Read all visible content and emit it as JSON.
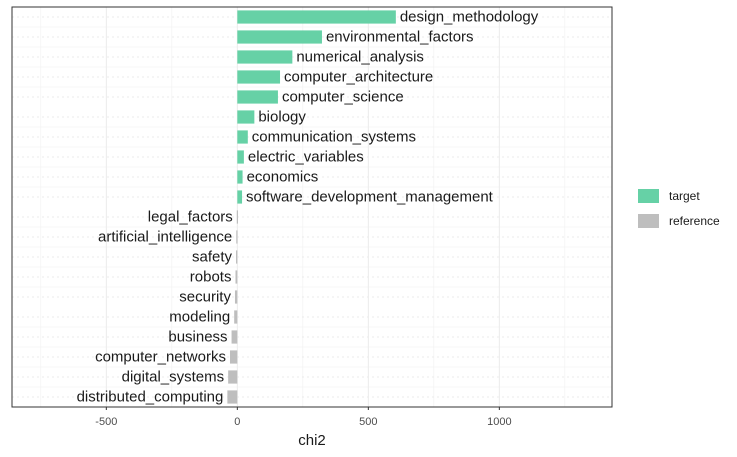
{
  "chart_data": {
    "type": "bar",
    "orientation": "horizontal",
    "title": "",
    "xlabel": "chi2",
    "ylabel": "",
    "xlim": [
      -860,
      1430
    ],
    "xticks": [
      -500,
      0,
      500,
      1000
    ],
    "xtick_labels": [
      "-500",
      "0",
      "500",
      "1000"
    ],
    "grid": true,
    "legend_position": "right",
    "legend": [
      {
        "name": "target",
        "color": "#66d1a6"
      },
      {
        "name": "reference",
        "color": "#bebebe"
      }
    ],
    "bars": [
      {
        "label": "design_methodology",
        "value": 605,
        "group": "target"
      },
      {
        "label": "environmental_factors",
        "value": 323,
        "group": "target"
      },
      {
        "label": "numerical_analysis",
        "value": 210,
        "group": "target"
      },
      {
        "label": "computer_architecture",
        "value": 163,
        "group": "target"
      },
      {
        "label": "computer_science",
        "value": 155,
        "group": "target"
      },
      {
        "label": "biology",
        "value": 65,
        "group": "target"
      },
      {
        "label": "communication_systems",
        "value": 40,
        "group": "target"
      },
      {
        "label": "electric_variables",
        "value": 25,
        "group": "target"
      },
      {
        "label": "economics",
        "value": 20,
        "group": "target"
      },
      {
        "label": "software_development_management",
        "value": 18,
        "group": "target"
      },
      {
        "label": "legal_factors",
        "value": -2,
        "group": "reference"
      },
      {
        "label": "artificial_intelligence",
        "value": -4,
        "group": "reference"
      },
      {
        "label": "safety",
        "value": -5,
        "group": "reference"
      },
      {
        "label": "robots",
        "value": -7,
        "group": "reference"
      },
      {
        "label": "security",
        "value": -9,
        "group": "reference"
      },
      {
        "label": "modeling",
        "value": -12,
        "group": "reference"
      },
      {
        "label": "business",
        "value": -22,
        "group": "reference"
      },
      {
        "label": "computer_networks",
        "value": -28,
        "group": "reference"
      },
      {
        "label": "digital_systems",
        "value": -35,
        "group": "reference"
      },
      {
        "label": "distributed_computing",
        "value": -38,
        "group": "reference"
      }
    ]
  }
}
